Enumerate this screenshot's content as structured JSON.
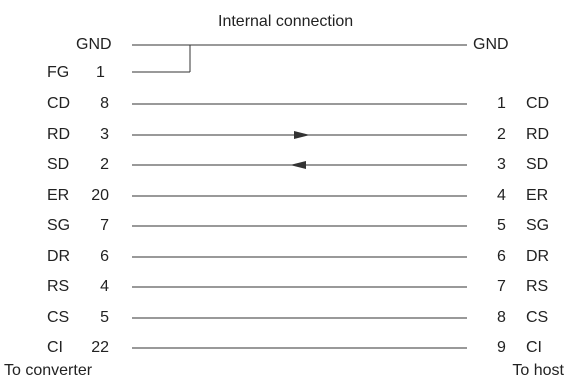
{
  "diagram": {
    "title": "Internal connection",
    "left_footer": "To converter",
    "right_footer": "To host",
    "gnd": {
      "left_label": "GND",
      "right_label": "GND"
    },
    "fg": {
      "name": "FG",
      "pin": "1"
    },
    "rows": [
      {
        "left_name": "CD",
        "left_pin": "8",
        "right_pin": "1",
        "right_name": "CD",
        "arrow": "none"
      },
      {
        "left_name": "RD",
        "left_pin": "3",
        "right_pin": "2",
        "right_name": "RD",
        "arrow": "right"
      },
      {
        "left_name": "SD",
        "left_pin": "2",
        "right_pin": "3",
        "right_name": "SD",
        "arrow": "left"
      },
      {
        "left_name": "ER",
        "left_pin": "20",
        "right_pin": "4",
        "right_name": "ER",
        "arrow": "none"
      },
      {
        "left_name": "SG",
        "left_pin": "7",
        "right_pin": "5",
        "right_name": "SG",
        "arrow": "none"
      },
      {
        "left_name": "DR",
        "left_pin": "6",
        "right_pin": "6",
        "right_name": "DR",
        "arrow": "none"
      },
      {
        "left_name": "RS",
        "left_pin": "4",
        "right_pin": "7",
        "right_name": "RS",
        "arrow": "none"
      },
      {
        "left_name": "CS",
        "left_pin": "5",
        "right_pin": "8",
        "right_name": "CS",
        "arrow": "none"
      },
      {
        "left_name": "CI",
        "left_pin": "22",
        "right_pin": "9",
        "right_name": "CI",
        "arrow": "none"
      }
    ],
    "line_color": "#333333",
    "text_color": "#222222"
  }
}
